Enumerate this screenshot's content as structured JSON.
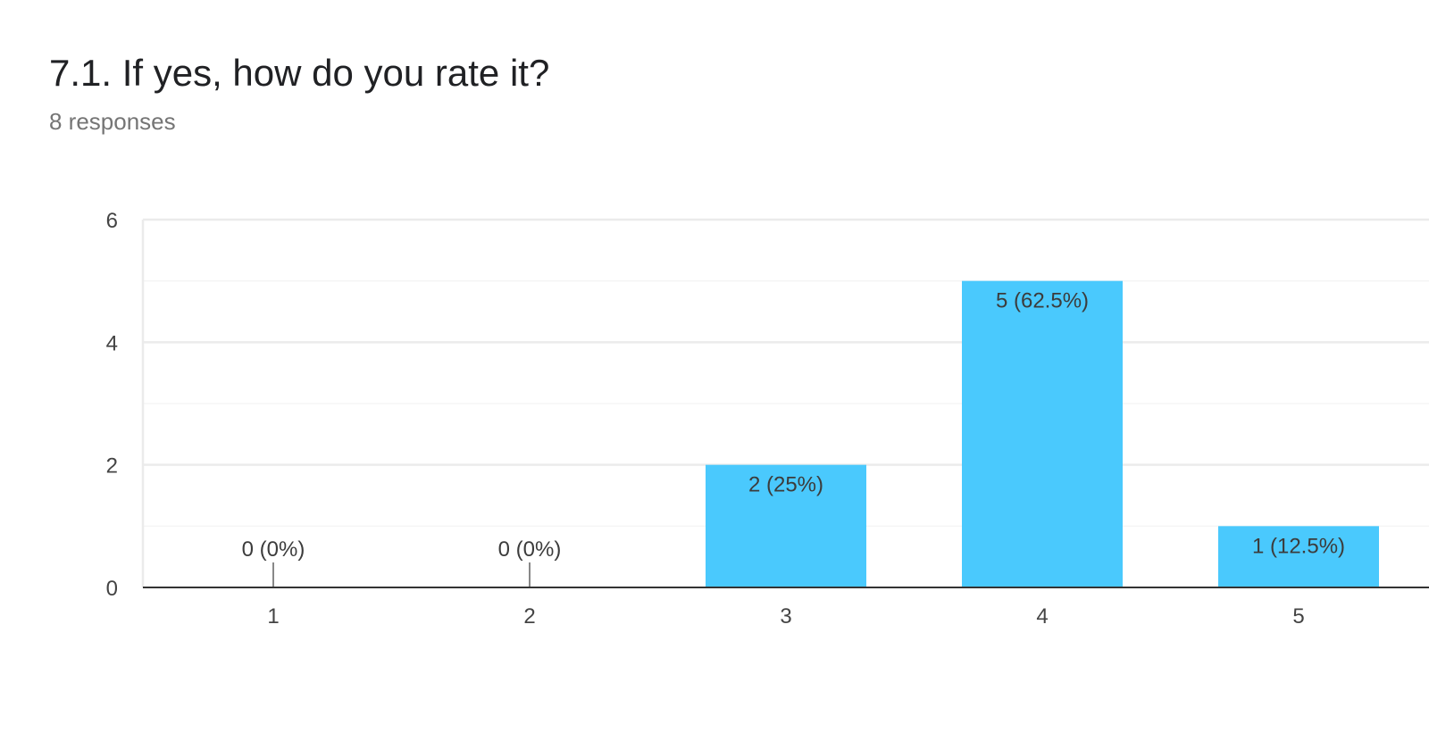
{
  "header": {
    "title": "7.1. If yes, how do you rate it?",
    "subtitle": "8 responses"
  },
  "chart_data": {
    "type": "bar",
    "categories": [
      "1",
      "2",
      "3",
      "4",
      "5"
    ],
    "values": [
      0,
      0,
      2,
      5,
      1
    ],
    "data_labels": [
      "0 (0%)",
      "0 (0%)",
      "2 (25%)",
      "5 (62.5%)",
      "1 (12.5%)"
    ],
    "ylim": [
      0,
      6
    ],
    "yticks": [
      "0",
      "2",
      "4",
      "6"
    ],
    "ytick_values": [
      0,
      2,
      4,
      6
    ],
    "grid": true,
    "bar_color": "#4ac9fd",
    "gridline_color": "#ebebeb",
    "minor_gridline_color": "#f5f5f5",
    "axis_color": "#333333"
  }
}
